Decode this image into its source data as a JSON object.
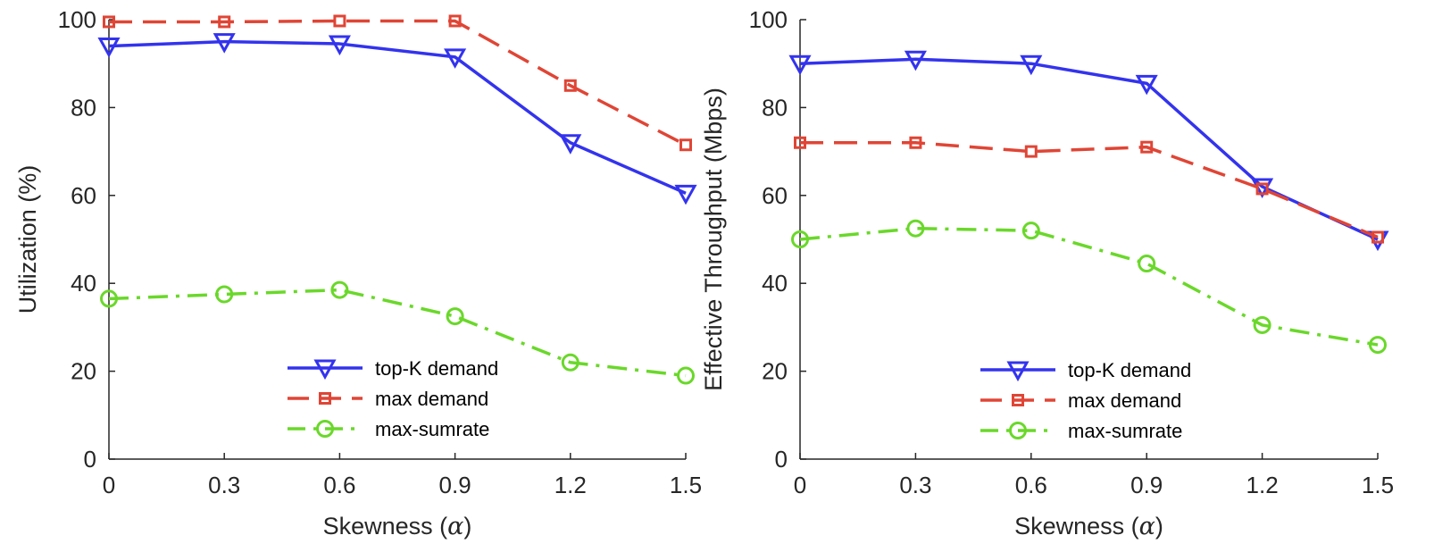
{
  "chart_data": [
    {
      "type": "line",
      "title": "",
      "xlabel": "Skewness (α)",
      "ylabel": "Utilization (%)",
      "x": [
        0,
        0.3,
        0.6,
        0.9,
        1.2,
        1.5
      ],
      "xtick_labels": [
        "0",
        "0.3",
        "0.6",
        "0.9",
        "1.2",
        "1.5"
      ],
      "yticks": [
        "0",
        "20",
        "40",
        "60",
        "80",
        "100"
      ],
      "xlim": [
        0,
        1.5
      ],
      "ylim": [
        0,
        100
      ],
      "grid": false,
      "legend_position": "bottom-right",
      "series": [
        {
          "name": "top-K demand",
          "values": [
            94,
            95,
            94.5,
            91.5,
            72,
            60.5
          ],
          "color": "#3333ee",
          "marker": "triangle-down",
          "dash": "solid"
        },
        {
          "name": "max demand",
          "values": [
            99.5,
            99.5,
            99.7,
            99.7,
            85,
            71.5
          ],
          "color": "#e04535",
          "marker": "square",
          "dash": "dashed"
        },
        {
          "name": "max-sumrate",
          "values": [
            36.5,
            37.5,
            38.5,
            32.5,
            22,
            19
          ],
          "color": "#6ad82a",
          "marker": "circle",
          "dash": "dashdot"
        }
      ]
    },
    {
      "type": "line",
      "title": "",
      "xlabel": "Skewness (α)",
      "ylabel": "Effective Throughput (Mbps)",
      "x": [
        0,
        0.3,
        0.6,
        0.9,
        1.2,
        1.5
      ],
      "xtick_labels": [
        "0",
        "0.3",
        "0.6",
        "0.9",
        "1.2",
        "1.5"
      ],
      "yticks": [
        "0",
        "20",
        "40",
        "60",
        "80",
        "100"
      ],
      "xlim": [
        0,
        1.5
      ],
      "ylim": [
        0,
        100
      ],
      "grid": false,
      "legend_position": "bottom-right",
      "series": [
        {
          "name": "top-K demand",
          "values": [
            90,
            91,
            90,
            85.5,
            62,
            50
          ],
          "color": "#3333ee",
          "marker": "triangle-down",
          "dash": "solid"
        },
        {
          "name": "max demand",
          "values": [
            72,
            72,
            70,
            71,
            61.5,
            50.5
          ],
          "color": "#e04535",
          "marker": "square",
          "dash": "dashed"
        },
        {
          "name": "max-sumrate",
          "values": [
            50,
            52.5,
            52,
            44.5,
            30.5,
            26
          ],
          "color": "#6ad82a",
          "marker": "circle",
          "dash": "dashdot"
        }
      ]
    }
  ]
}
